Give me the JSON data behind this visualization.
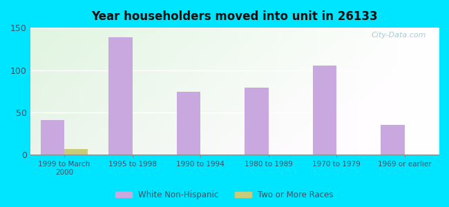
{
  "title": "Year householders moved into unit in 26133",
  "categories": [
    "1999 to March\n2000",
    "1995 to 1998",
    "1990 to 1994",
    "1980 to 1989",
    "1970 to 1979",
    "1969 or earlier"
  ],
  "white_non_hispanic": [
    41,
    139,
    74,
    79,
    105,
    35
  ],
  "two_or_more_races": [
    7,
    0,
    0,
    0,
    0,
    0
  ],
  "bar_color_white": "#c9a8e0",
  "bar_color_two": "#c8cc7a",
  "background_outer": "#00e5ff",
  "ylim": [
    0,
    150
  ],
  "yticks": [
    0,
    50,
    100,
    150
  ],
  "bar_width": 0.35,
  "legend_labels": [
    "White Non-Hispanic",
    "Two or More Races"
  ],
  "watermark": "City-Data.com"
}
